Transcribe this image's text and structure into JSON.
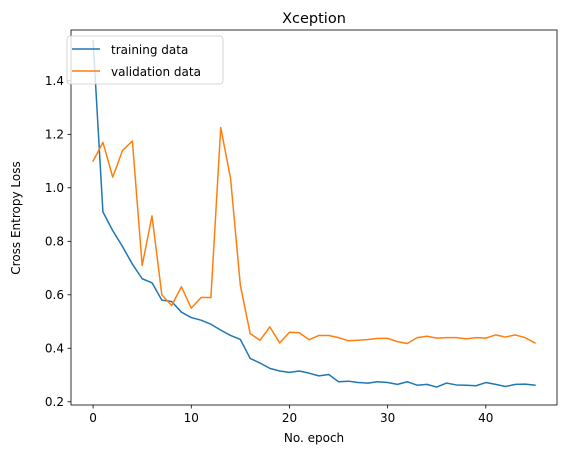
{
  "chart_data": {
    "type": "line",
    "title": "Xception",
    "xlabel": "No. epoch",
    "ylabel": "Cross Entropy Loss",
    "xlim": [
      -2.25,
      47.25
    ],
    "ylim": [
      0.188,
      1.59
    ],
    "xticks": [
      0,
      10,
      20,
      30,
      40
    ],
    "yticks": [
      0.2,
      0.4,
      0.6,
      0.8,
      1.0,
      1.2,
      1.4
    ],
    "ytick_labels": [
      "0.2",
      "0.4",
      "0.6",
      "0.8",
      "1.0",
      "1.2",
      "1.4"
    ],
    "grid": false,
    "legend_position": "top-left",
    "series": [
      {
        "name": "training data",
        "color": "#1f77b4",
        "x": [
          0,
          1,
          2,
          3,
          4,
          5,
          6,
          7,
          8,
          9,
          10,
          11,
          12,
          13,
          14,
          15,
          16,
          17,
          18,
          19,
          20,
          21,
          22,
          23,
          24,
          25,
          26,
          27,
          28,
          29,
          30,
          31,
          32,
          33,
          34,
          35,
          36,
          37,
          38,
          39,
          40,
          41,
          42,
          43,
          44,
          45
        ],
        "values": [
          1.55,
          0.91,
          0.84,
          0.78,
          0.715,
          0.66,
          0.645,
          0.58,
          0.575,
          0.535,
          0.515,
          0.505,
          0.49,
          0.468,
          0.448,
          0.433,
          0.362,
          0.345,
          0.325,
          0.315,
          0.31,
          0.315,
          0.307,
          0.297,
          0.302,
          0.275,
          0.277,
          0.272,
          0.27,
          0.275,
          0.272,
          0.265,
          0.275,
          0.262,
          0.265,
          0.255,
          0.27,
          0.263,
          0.262,
          0.26,
          0.272,
          0.265,
          0.257,
          0.265,
          0.266,
          0.262
        ]
      },
      {
        "name": "validation data",
        "color": "#ff7f0e",
        "x": [
          0,
          1,
          2,
          3,
          4,
          5,
          6,
          7,
          8,
          9,
          10,
          11,
          12,
          13,
          14,
          15,
          16,
          17,
          18,
          19,
          20,
          21,
          22,
          23,
          24,
          25,
          26,
          27,
          28,
          29,
          30,
          31,
          32,
          33,
          34,
          35,
          36,
          37,
          38,
          39,
          40,
          41,
          42,
          43,
          44,
          45
        ],
        "values": [
          1.1,
          1.17,
          1.04,
          1.14,
          1.175,
          0.71,
          0.895,
          0.6,
          0.56,
          0.63,
          0.55,
          0.59,
          0.59,
          1.225,
          1.035,
          0.635,
          0.455,
          0.43,
          0.48,
          0.42,
          0.46,
          0.458,
          0.432,
          0.448,
          0.448,
          0.44,
          0.428,
          0.43,
          0.433,
          0.437,
          0.437,
          0.425,
          0.418,
          0.44,
          0.445,
          0.438,
          0.44,
          0.44,
          0.435,
          0.44,
          0.438,
          0.45,
          0.442,
          0.45,
          0.44,
          0.42
        ]
      }
    ]
  }
}
